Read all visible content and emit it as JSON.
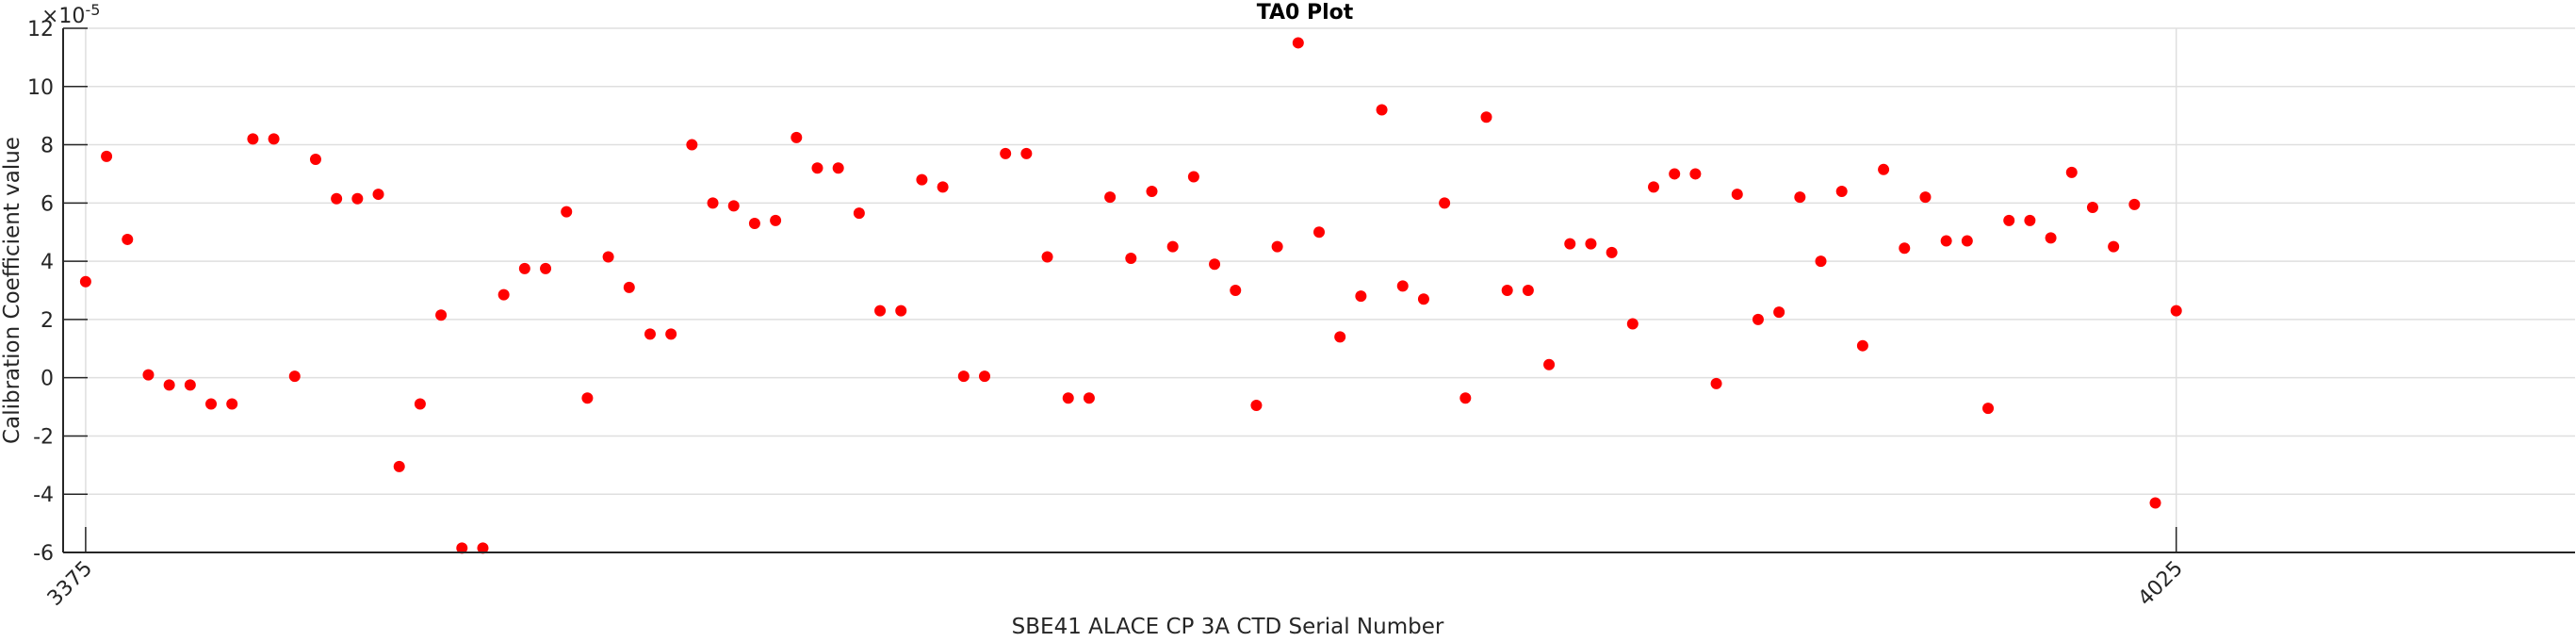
{
  "chart_data": {
    "type": "scatter",
    "title": "TA0 Plot",
    "xlabel": "SBE41 ALACE CP 3A CTD Serial Number",
    "ylabel": "Calibration Coefficient value",
    "y_exponent_label": "×10",
    "y_exponent": "-5",
    "xlim": [
      3368,
      4149
    ],
    "ylim": [
      -6,
      12
    ],
    "xticks": [
      3375,
      4025
    ],
    "xtick_labels": [
      "3375",
      "4025"
    ],
    "yticks": [
      -6,
      -4,
      -2,
      0,
      2,
      4,
      6,
      8,
      10,
      12
    ],
    "ytick_labels": [
      "-6",
      "-4",
      "-2",
      "0",
      "2",
      "4",
      "6",
      "8",
      "10",
      "12"
    ],
    "grid": true,
    "marker_color": "#ff0000",
    "series": [
      {
        "name": "TA0",
        "x_start": 3375,
        "x_step": 6.5,
        "y": [
          3.3,
          7.6,
          4.75,
          0.1,
          -0.25,
          -0.25,
          -0.9,
          -0.9,
          8.2,
          8.2,
          0.05,
          7.5,
          6.15,
          6.15,
          6.3,
          -3.05,
          -0.9,
          2.15,
          -5.85,
          -5.85,
          2.85,
          3.75,
          3.75,
          5.7,
          -0.7,
          4.15,
          3.1,
          1.5,
          1.5,
          8.0,
          6.0,
          5.9,
          5.3,
          5.4,
          8.25,
          7.2,
          7.2,
          5.65,
          2.3,
          2.3,
          6.8,
          6.55,
          0.05,
          0.05,
          7.7,
          7.7,
          4.15,
          -0.7,
          -0.7,
          6.2,
          4.1,
          6.4,
          4.5,
          6.9,
          3.9,
          3.0,
          -0.95,
          4.5,
          11.5,
          5.0,
          1.4,
          2.8,
          9.2,
          3.15,
          2.7,
          6.0,
          -0.7,
          8.95,
          3.0,
          3.0,
          0.45,
          4.6,
          4.6,
          4.3,
          1.85,
          6.55,
          7.0,
          7.0,
          -0.2,
          6.3,
          2.0,
          2.25,
          6.2,
          4.0,
          6.4,
          1.1,
          7.15,
          4.45,
          6.2,
          4.7,
          4.7,
          -1.05,
          5.4,
          5.4,
          4.8,
          7.05,
          5.85,
          4.5,
          5.95,
          -4.3,
          2.3
        ]
      }
    ]
  }
}
